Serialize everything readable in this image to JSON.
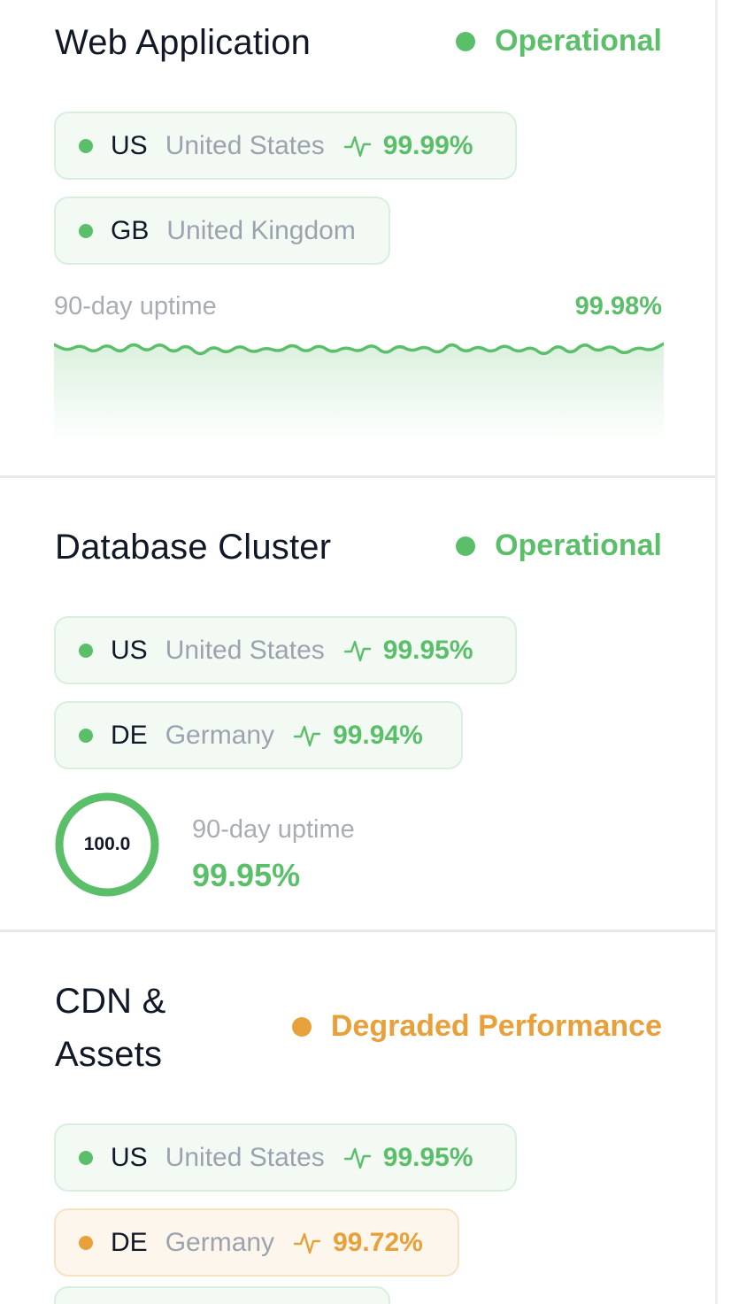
{
  "services": [
    {
      "name": "Web Application",
      "status": "Operational",
      "status_color": "#5bbf6a",
      "regions": [
        {
          "code": "US",
          "country": "United States",
          "uptime": "99.99%",
          "state": "ok"
        },
        {
          "code": "GB",
          "country": "United Kingdom",
          "uptime": "",
          "state": "ok"
        }
      ],
      "uptime_label": "90-day uptime",
      "uptime_value": "99.98%",
      "sparkline_color": "#5bbf6a"
    },
    {
      "name": "Database Cluster",
      "status": "Operational",
      "status_color": "#5bbf6a",
      "regions": [
        {
          "code": "US",
          "country": "United States",
          "uptime": "99.95%",
          "state": "ok"
        },
        {
          "code": "DE",
          "country": "Germany",
          "uptime": "99.94%",
          "state": "ok"
        }
      ],
      "ring_value": "100.0",
      "ring_fraction": 1.0,
      "uptime_label": "90-day uptime",
      "uptime_value": "99.95%"
    },
    {
      "name_line1": "CDN &",
      "name_line2": "Assets",
      "status": "Degraded Performance",
      "status_color": "#e8a03a",
      "regions": [
        {
          "code": "US",
          "country": "United States",
          "uptime": "99.95%",
          "state": "ok"
        },
        {
          "code": "DE",
          "country": "Germany",
          "uptime": "99.72%",
          "state": "warn"
        }
      ]
    }
  ],
  "icons": {
    "status_dot": "status-dot-icon",
    "pulse": "activity-pulse-icon"
  },
  "colors": {
    "operational": "#5bbf6a",
    "degraded": "#e8a03a",
    "title": "#111827",
    "muted": "#9ca3af"
  }
}
